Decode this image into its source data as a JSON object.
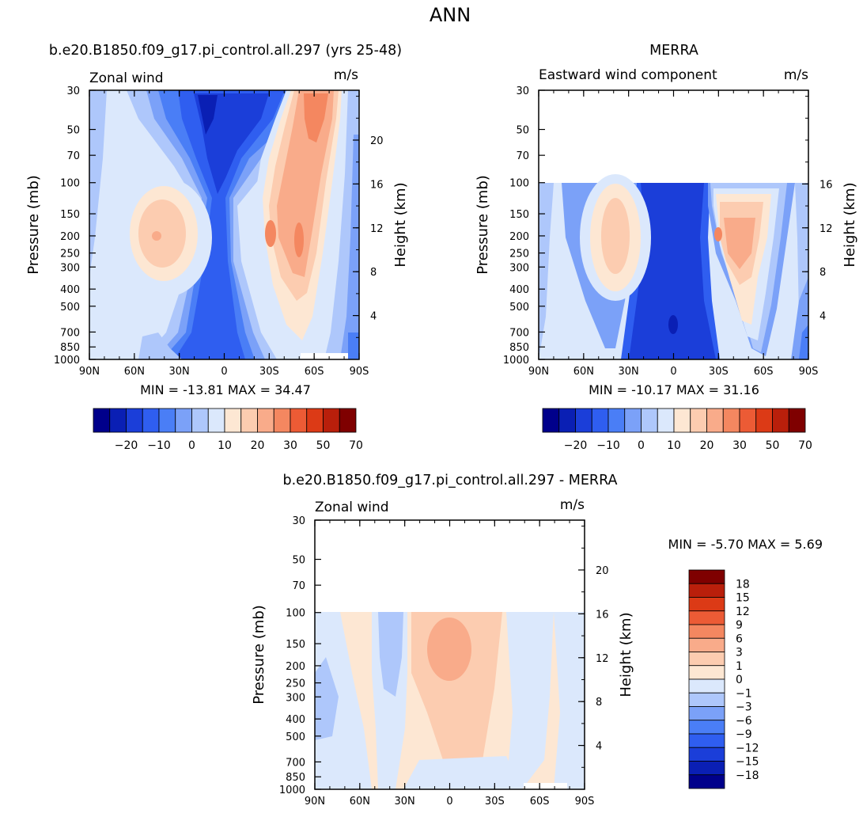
{
  "page_title": "ANN",
  "chart_data": [
    {
      "type": "contour",
      "title": "b.e20.B1850.f09_g17.pi_control.all.297 (yrs 25-48)",
      "variable_label": "Zonal wind",
      "units_label": "m/s",
      "ylabel": "Pressure (mb)",
      "ylabel_right": "Height (km)",
      "x_ticks": [
        "90N",
        "60N",
        "30N",
        "0",
        "30S",
        "60S",
        "90S"
      ],
      "y_ticks": [
        "30",
        "50",
        "70",
        "100",
        "150",
        "200",
        "250",
        "300",
        "400",
        "500",
        "700",
        "850",
        "1000"
      ],
      "height_ticks": [
        "20",
        "16",
        "12",
        "8",
        "4"
      ],
      "stats": "MIN = -13.81   MAX =  34.47",
      "features": [
        {
          "lat": -37,
          "p": 200,
          "u": 17,
          "desc": "subtropical jet (NH)"
        },
        {
          "lat": 30,
          "p": 200,
          "u": 34,
          "desc": "subtropical jet (SH)"
        },
        {
          "lat": 52,
          "p": 200,
          "u": 34,
          "desc": "eddy-driven jet (SH)"
        },
        {
          "lat": 0,
          "p": 30,
          "u": -13,
          "desc": "tropical stratospheric easterlies"
        }
      ],
      "colorbar": {
        "labels": [
          "-20",
          "-10",
          "0",
          "10",
          "20",
          "30",
          "50",
          "70"
        ]
      }
    },
    {
      "type": "contour",
      "title": "MERRA",
      "variable_label": "Eastward wind component",
      "units_label": "m/s",
      "ylabel": "Pressure (mb)",
      "ylabel_right": "Height (km)",
      "x_ticks": [
        "90N",
        "60N",
        "30N",
        "0",
        "30S",
        "60S",
        "90S"
      ],
      "y_ticks": [
        "30",
        "50",
        "70",
        "100",
        "150",
        "200",
        "250",
        "300",
        "400",
        "500",
        "700",
        "850",
        "1000"
      ],
      "height_ticks": [
        "16",
        "12",
        "8",
        "4"
      ],
      "stats": "MIN = -10.17   MAX =  31.16",
      "data_top_p": 100,
      "features": [
        {
          "lat": -38,
          "p": 200,
          "u": 20,
          "desc": "subtropical jet (NH)"
        },
        {
          "lat": 33,
          "p": 200,
          "u": 31,
          "desc": "subtropical jet (SH)"
        },
        {
          "lat": 0,
          "p": 650,
          "u": -10,
          "desc": "tropical easterlies"
        }
      ],
      "colorbar": {
        "labels": [
          "-20",
          "-10",
          "0",
          "10",
          "20",
          "30",
          "50",
          "70"
        ]
      }
    },
    {
      "type": "contour",
      "title": "b.e20.B1850.f09_g17.pi_control.all.297 - MERRA",
      "variable_label": "Zonal wind",
      "units_label": "m/s",
      "ylabel": "Pressure (mb)",
      "ylabel_right": "Height (km)",
      "x_ticks": [
        "90N",
        "60N",
        "30N",
        "0",
        "30S",
        "60S",
        "90S"
      ],
      "y_ticks": [
        "30",
        "50",
        "70",
        "100",
        "150",
        "200",
        "250",
        "300",
        "400",
        "500",
        "700",
        "850",
        "1000"
      ],
      "height_ticks": [
        "20",
        "16",
        "12",
        "8",
        "4"
      ],
      "stats": "MIN =   -5.70   MAX =    5.69",
      "data_top_p": 100,
      "features": [
        {
          "lat": 0,
          "p": 180,
          "u": 5.7,
          "desc": "positive difference"
        },
        {
          "lat": -43,
          "p": 300,
          "u": -4,
          "desc": "negative difference"
        },
        {
          "lat": -82,
          "p": 350,
          "u": -2,
          "desc": "negative difference"
        }
      ],
      "colorbar": {
        "labels": [
          "18",
          "15",
          "12",
          "9",
          "6",
          "3",
          "1",
          "0",
          "-1",
          "-3",
          "-6",
          "-9",
          "-12",
          "-15",
          "-18"
        ]
      }
    }
  ],
  "colors": {
    "diverging": [
      "#00008b",
      "#0a1fb4",
      "#1b3ed9",
      "#2f5ef0",
      "#4a7ef6",
      "#7ba1f8",
      "#aec7fb",
      "#dbe8fc",
      "#fde7d3",
      "#fcccb0",
      "#f9ab8a",
      "#f48760",
      "#ec5b35",
      "#dc3a16",
      "#b91f0b",
      "#7f0000"
    ]
  }
}
